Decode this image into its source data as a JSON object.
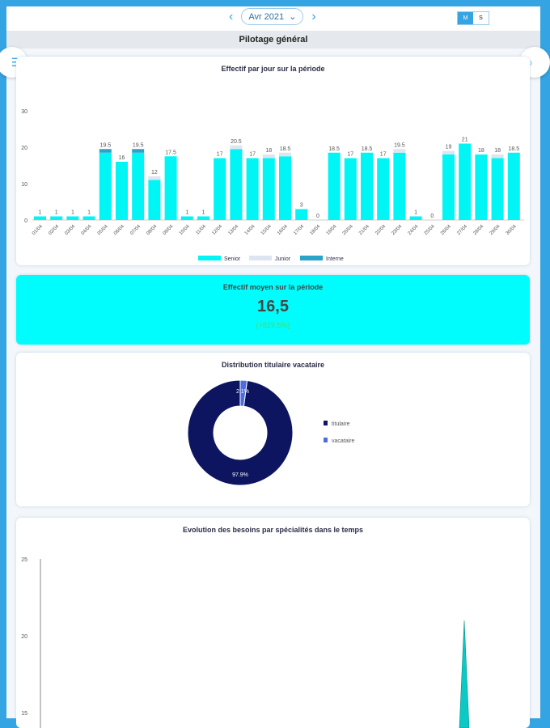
{
  "header": {
    "month": "Avr 2021",
    "toggle": [
      "M",
      "S"
    ],
    "title": "Pilotage général"
  },
  "cards": {
    "daily_title": "Effectif par jour sur la période",
    "kpi_title": "Effectif moyen sur la période",
    "kpi_value": "16,5",
    "kpi_delta": "(+829,5%)",
    "donut_title": "Distribution titulaire vacataire",
    "evolution_title": "Evolution des besoins par spécialités dans le temps"
  },
  "colors": {
    "senior": "#00f5f5",
    "junior": "#dde6f0",
    "interne": "#2aa3c8",
    "titulaire": "#0d1560",
    "vacataire": "#4f6be0",
    "delta": "#4cd964"
  },
  "chart_data": [
    {
      "type": "bar",
      "stacked": true,
      "title": "Effectif par jour sur la période",
      "ylim": [
        0,
        30
      ],
      "yticks": [
        0,
        10,
        20,
        30
      ],
      "categories": [
        "01/04",
        "02/04",
        "03/04",
        "04/04",
        "05/04",
        "06/04",
        "07/04",
        "08/04",
        "09/04",
        "10/04",
        "11/04",
        "12/04",
        "13/04",
        "14/04",
        "15/04",
        "16/04",
        "17/04",
        "18/04",
        "19/04",
        "20/04",
        "21/04",
        "22/04",
        "23/04",
        "24/04",
        "25/04",
        "26/04",
        "27/04",
        "28/04",
        "29/04",
        "30/04"
      ],
      "series": [
        {
          "name": "Senior",
          "values": [
            1,
            1,
            1,
            1,
            18.5,
            16,
            18.5,
            11,
            17.5,
            1,
            1,
            17,
            19.5,
            17,
            17,
            17.5,
            3,
            0,
            18.5,
            17,
            18.5,
            17,
            18.5,
            1,
            0,
            18,
            21,
            18,
            17,
            18.5
          ]
        },
        {
          "name": "Junior",
          "values": [
            0,
            0,
            0,
            0,
            0,
            0,
            0,
            1,
            0,
            0,
            0,
            0,
            1,
            0,
            1,
            1,
            0,
            0,
            0,
            0,
            0,
            0,
            1,
            0,
            0,
            1,
            0,
            0,
            1,
            0
          ]
        },
        {
          "name": "Interne",
          "values": [
            0,
            0,
            0,
            0,
            1,
            0,
            1,
            0,
            0,
            0,
            0,
            0,
            0,
            0,
            0,
            0,
            0,
            0,
            0,
            0,
            0,
            0,
            0,
            0,
            0,
            0,
            0,
            0,
            0,
            0
          ]
        }
      ],
      "labels": [
        "1",
        "1",
        "1",
        "1",
        "19.5",
        "16",
        "19.5",
        "12",
        "17.5",
        "1",
        "1",
        "17",
        "20.5",
        "17",
        "18",
        "18.5",
        "3",
        "0",
        "18.5",
        "17",
        "18.5",
        "17",
        "19.5",
        "1",
        "0",
        "19",
        "21",
        "18",
        "18",
        "18.5"
      ],
      "legend": "bottom"
    },
    {
      "type": "pie",
      "title": "Distribution titulaire vacataire",
      "slices": [
        {
          "name": "titulaire",
          "value": 97.9,
          "label": "97.9%"
        },
        {
          "name": "vacataire",
          "value": 2.1,
          "label": "2.1%"
        }
      ],
      "legend": "right"
    },
    {
      "type": "area",
      "title": "Evolution des besoins par spécialités dans le temps",
      "yticks": [
        15,
        20,
        25
      ],
      "ylim": [
        15,
        25
      ],
      "peak": {
        "x": "27/04",
        "y": 21
      }
    }
  ]
}
